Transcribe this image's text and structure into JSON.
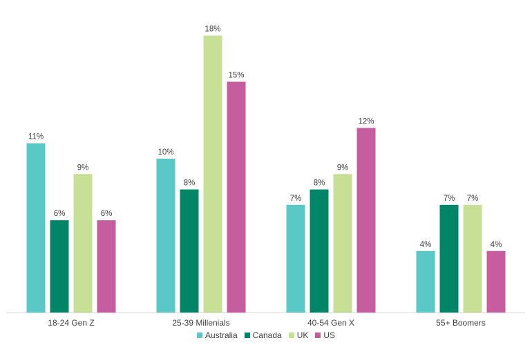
{
  "chart_data": {
    "type": "bar",
    "categories": [
      "18-24 Gen Z",
      "25-39 Millenials",
      "40-54 Gen X",
      "55+ Boomers"
    ],
    "series": [
      {
        "name": "Australia",
        "color": "#5bc8c8",
        "values": [
          11,
          10,
          7,
          4
        ]
      },
      {
        "name": "Canada",
        "color": "#008566",
        "values": [
          6,
          8,
          8,
          7
        ]
      },
      {
        "name": "UK",
        "color": "#c8e096",
        "values": [
          9,
          18,
          9,
          7
        ]
      },
      {
        "name": "US",
        "color": "#c55d9f",
        "values": [
          6,
          15,
          12,
          4
        ]
      }
    ],
    "value_suffix": "%",
    "title": "",
    "xlabel": "",
    "ylabel": "",
    "ylim": [
      0,
      18
    ],
    "grid": false,
    "legend": "bottom"
  }
}
